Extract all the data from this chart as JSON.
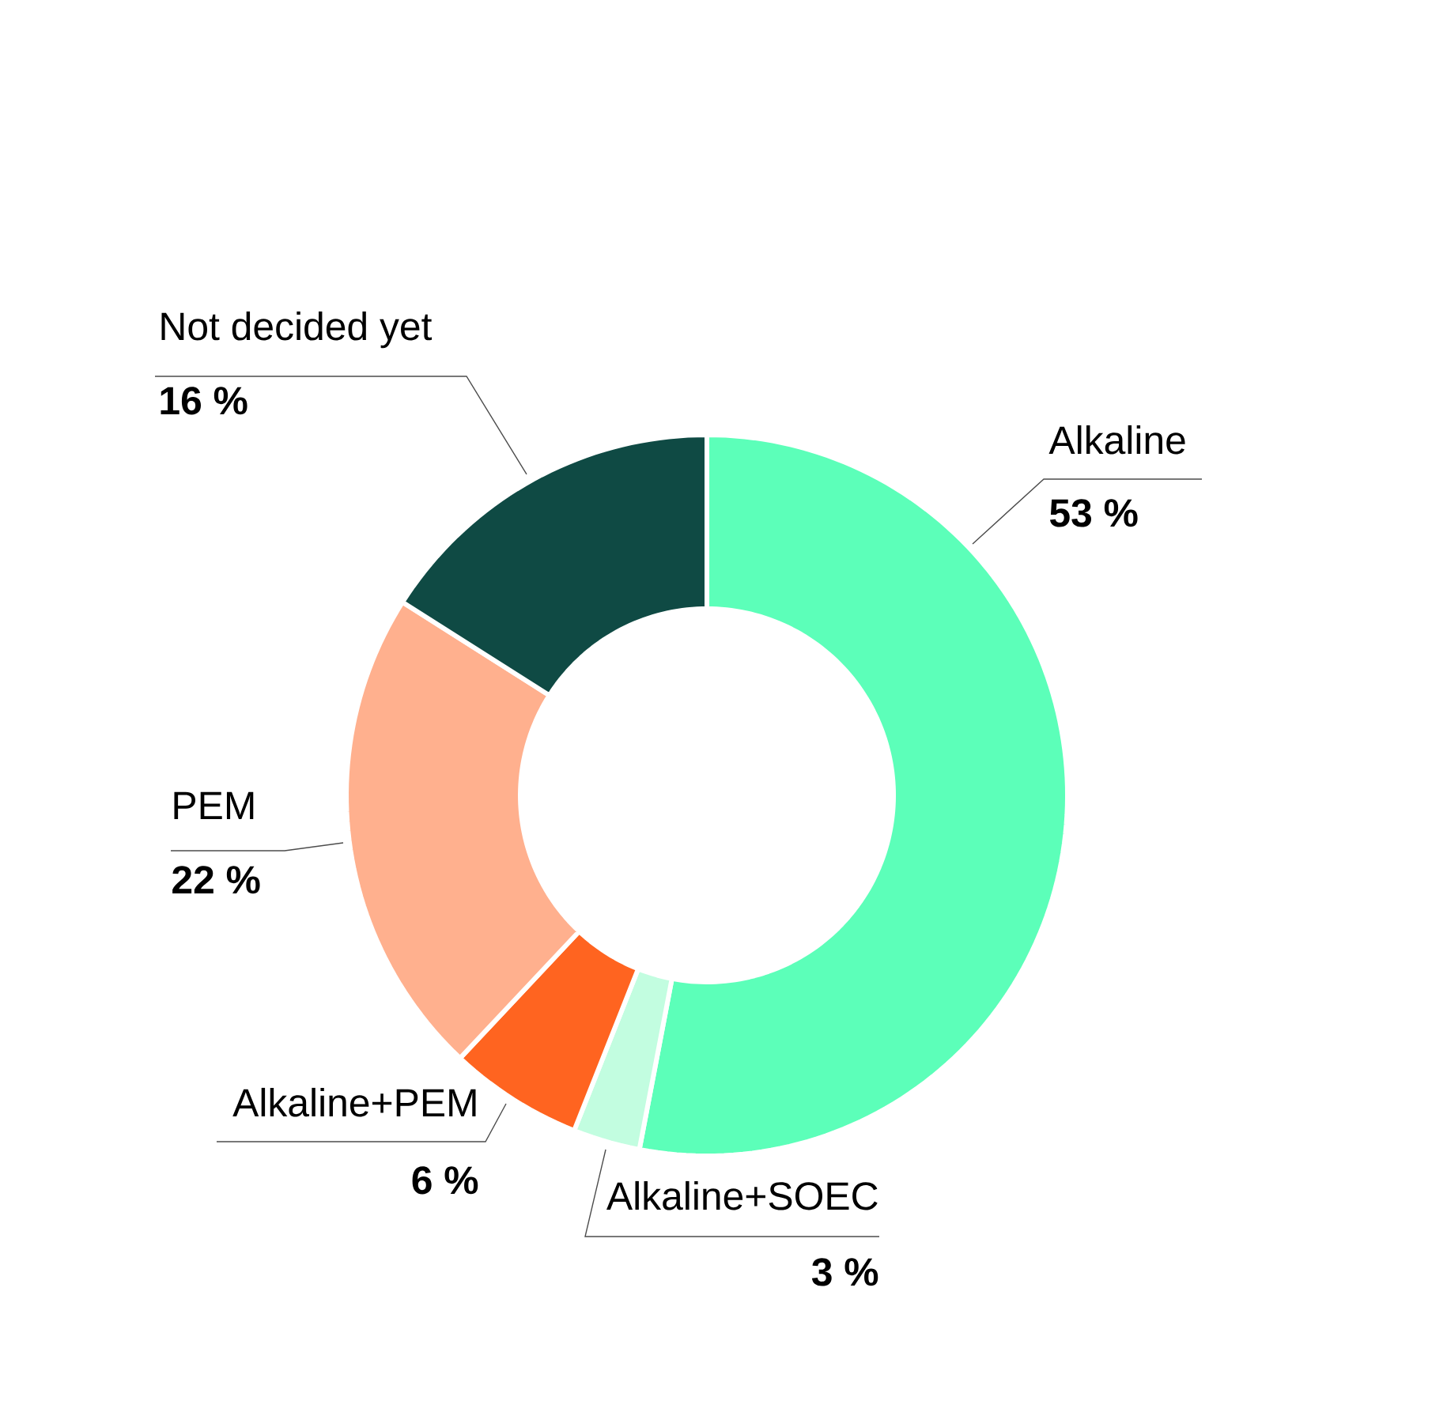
{
  "chart_data": {
    "type": "donut",
    "categories": [
      "Alkaline",
      "Alkaline+SOEC",
      "Alkaline+PEM",
      "PEM",
      "Not decided yet"
    ],
    "values": [
      53,
      3,
      6,
      22,
      16
    ],
    "colors": [
      "#5cffb9",
      "#c2fde0",
      "#ff6420",
      "#ffb08e",
      "#0f4a44"
    ],
    "value_labels": [
      "53 %",
      "3 %",
      "6 %",
      "22 %",
      "16 %"
    ]
  }
}
